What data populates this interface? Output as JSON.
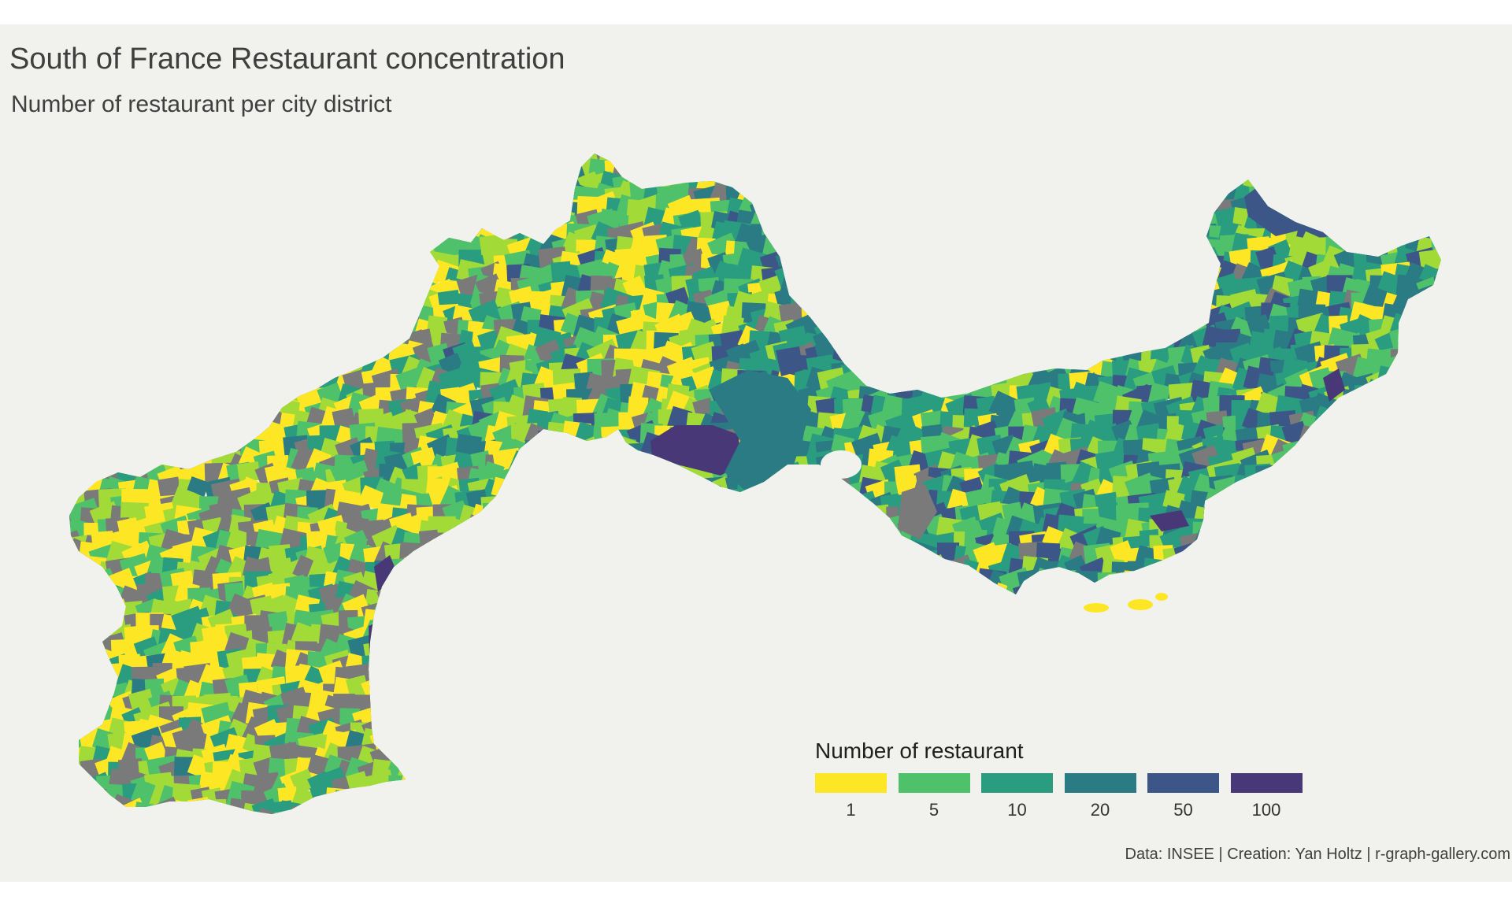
{
  "title": "South of France Restaurant concentration",
  "subtitle": "Number of restaurant per city district",
  "caption": "Data: INSEE | Creation: Yan Holtz | r-graph-gallery.com",
  "legend": {
    "title": "Number of restaurant",
    "items": [
      {
        "label": "1",
        "color": "#fde725"
      },
      {
        "label": "5",
        "color": "#4fc16a"
      },
      {
        "label": "10",
        "color": "#2a9c80"
      },
      {
        "label": "20",
        "color": "#2b7b84"
      },
      {
        "label": "50",
        "color": "#3c5688"
      },
      {
        "label": "100",
        "color": "#483878"
      }
    ]
  },
  "colors": {
    "background": "#f1f1ee",
    "no_data": "#7a7a7a",
    "light_green": "#a2da37",
    "text": "#3f3f3f"
  }
}
